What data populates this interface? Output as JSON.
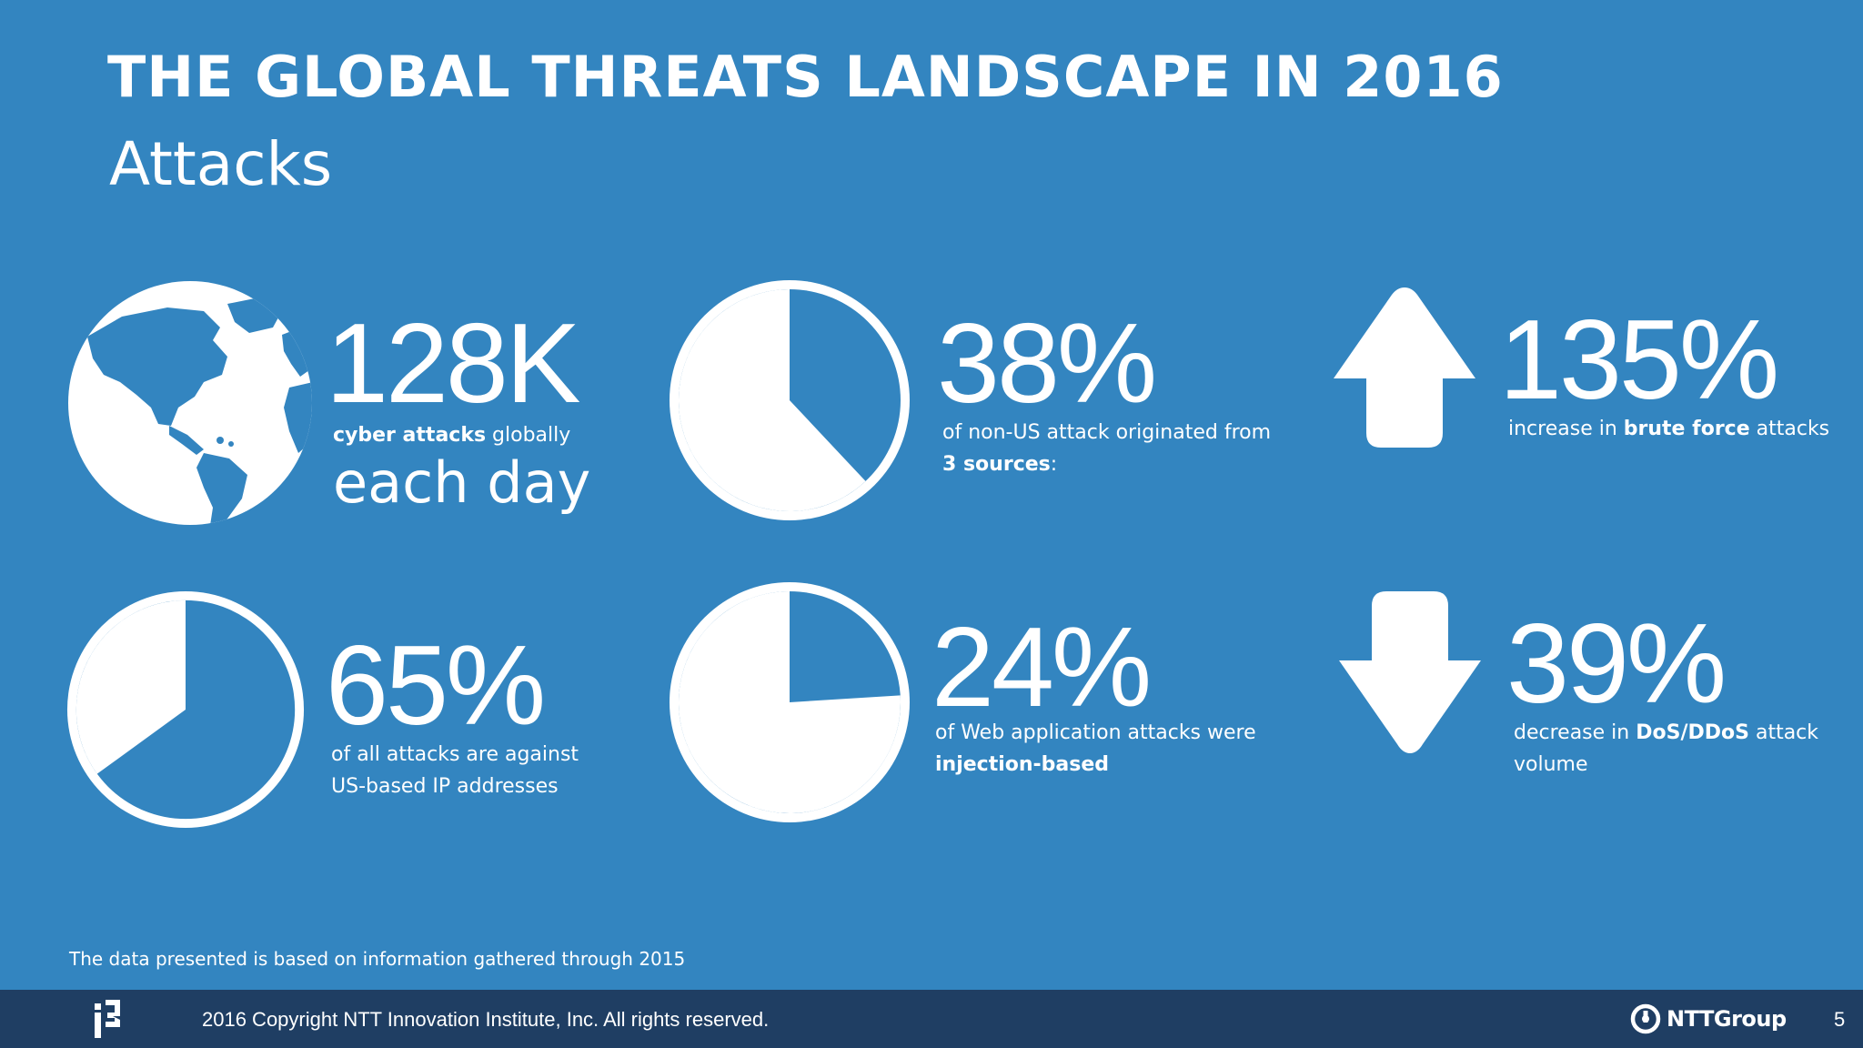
{
  "header": {
    "title": "THE GLOBAL THREATS LANDSCAPE IN 2016",
    "subtitle": "Attacks"
  },
  "stats": [
    {
      "id": "attacks-per-day",
      "value": "128K",
      "bold": "cyber attacks",
      "rest": " globally",
      "extra": "each day",
      "icon": "globe-icon"
    },
    {
      "id": "non-us-sources",
      "value": "38%",
      "pie_fraction": 0.38,
      "line1": "of non-US attack originated from",
      "bold": "3 sources",
      "rest": ":",
      "icon": "pie-chart-icon"
    },
    {
      "id": "brute-force",
      "value": "135%",
      "pre": "increase in ",
      "bold": "brute force",
      "rest": " attacks",
      "icon": "arrow-up-icon"
    },
    {
      "id": "us-based",
      "value": "65%",
      "pie_fraction": 0.65,
      "line1": "of all attacks are against",
      "line2": "US-based IP addresses",
      "icon": "pie-chart-icon"
    },
    {
      "id": "injection",
      "value": "24%",
      "pie_fraction": 0.24,
      "line1": "of Web application attacks were",
      "bold": "injection-based",
      "icon": "pie-chart-icon"
    },
    {
      "id": "ddos",
      "value": "39%",
      "pre": "decrease in ",
      "bold": "DoS/DDoS",
      "rest": " attack",
      "line2": "volume",
      "icon": "arrow-down-icon"
    }
  ],
  "footnote": "The data presented is based on information gathered through 2015",
  "footer": {
    "copyright": "2016 Copyright NTT Innovation Institute, Inc. All rights reserved.",
    "brand": "NTTGroup",
    "page_number": "5"
  },
  "colors": {
    "background": "#3385c0",
    "footer": "#1f3e63",
    "foreground": "#ffffff"
  }
}
